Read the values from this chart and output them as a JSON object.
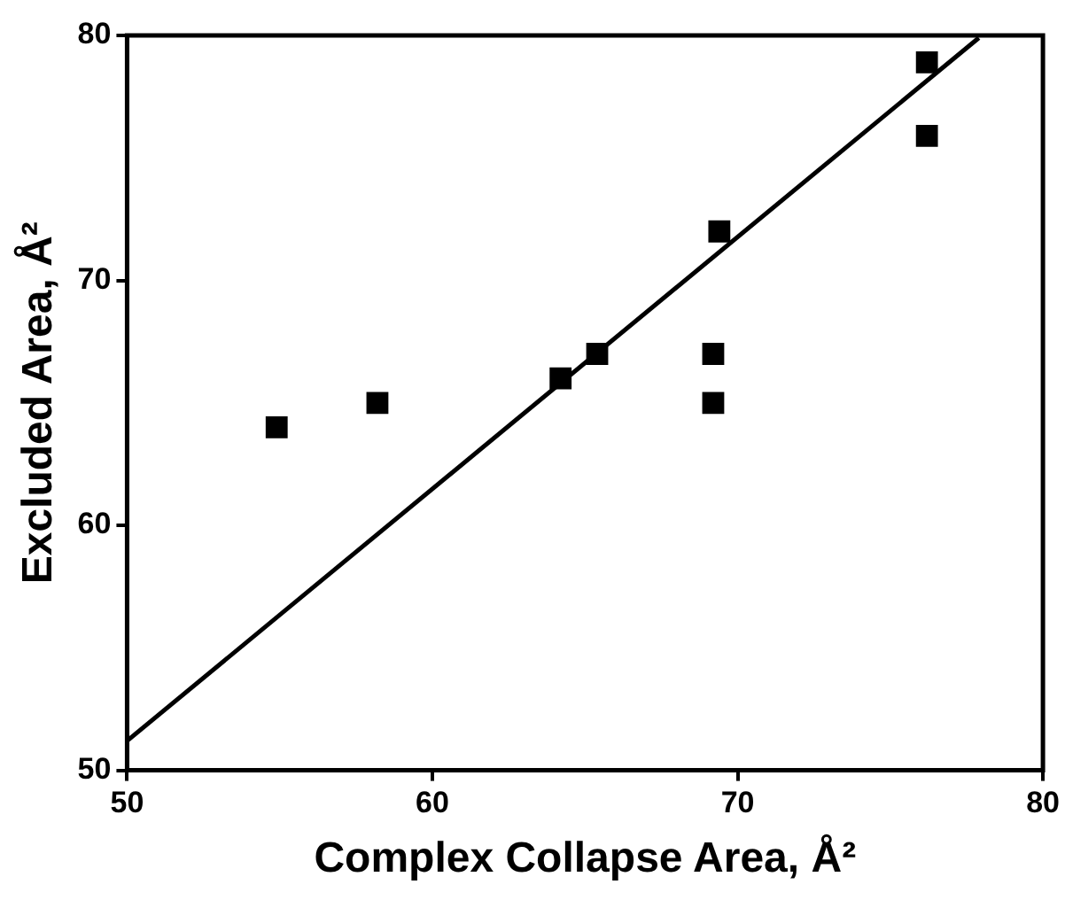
{
  "chart_data": {
    "type": "scatter",
    "xlabel": "Complex Collapse Area, Å²",
    "ylabel": "Excluded Area, Å²",
    "xlim": [
      50,
      80
    ],
    "ylim": [
      50,
      80
    ],
    "xticks": [
      50,
      60,
      70,
      80
    ],
    "yticks": [
      50,
      60,
      70,
      80
    ],
    "grid": false,
    "legend": false,
    "marker": "square",
    "series": [
      {
        "color": "#000000",
        "x": [
          54.9,
          58.2,
          64.2,
          65.4,
          69.4,
          69.2,
          69.2,
          76.2,
          76.2
        ],
        "values": [
          64,
          65,
          66,
          67,
          72,
          67,
          65,
          78.9,
          75.9
        ]
      },
      {
        "type": "line",
        "color": "#000000",
        "marker": "none",
        "x": [
          50,
          77.9
        ],
        "values": [
          51.2,
          79.9
        ]
      }
    ]
  }
}
